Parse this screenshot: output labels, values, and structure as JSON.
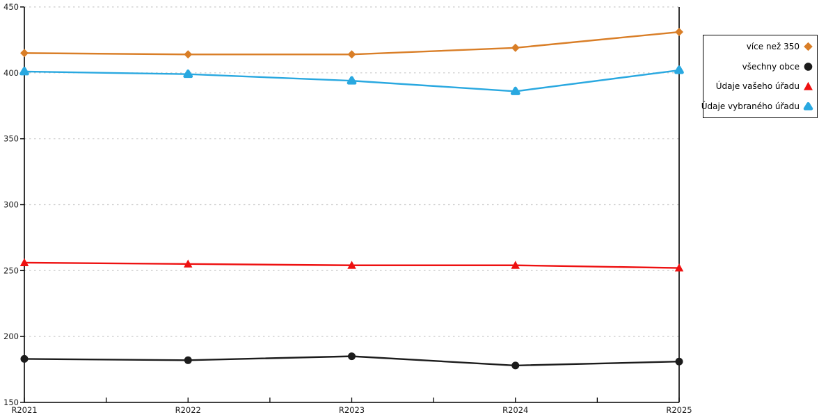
{
  "chart_data": {
    "type": "line",
    "title": "",
    "xlabel": "",
    "ylabel": "",
    "x_categories": [
      "R2021",
      "R2022",
      "R2023",
      "R2024",
      "R2025"
    ],
    "ylim": [
      150,
      450
    ],
    "y_ticks": [
      450,
      400,
      350,
      300,
      250,
      200,
      150
    ],
    "grid": "horizontal-dashed",
    "grid_color": "#c9c9c9",
    "axis_color": "#000000",
    "legend_position": "outside-top-right",
    "series": [
      {
        "name": "více než 350",
        "marker": "diamond",
        "color": "#D97E27",
        "values": [
          415,
          414,
          414,
          419,
          431
        ]
      },
      {
        "name": "všechny obce",
        "marker": "circle",
        "color": "#1C1C1C",
        "values": [
          183,
          182,
          185,
          178,
          181
        ]
      },
      {
        "name": "Údaje vašeho úřadu",
        "marker": "triangle",
        "color": "#EE1111",
        "values": [
          256,
          255,
          254,
          254,
          252
        ]
      },
      {
        "name": "Údaje vybraného úřadu",
        "marker": "triangle-rounded",
        "color": "#29A8E0",
        "values": [
          401,
          399,
          394,
          386,
          402
        ]
      }
    ]
  }
}
